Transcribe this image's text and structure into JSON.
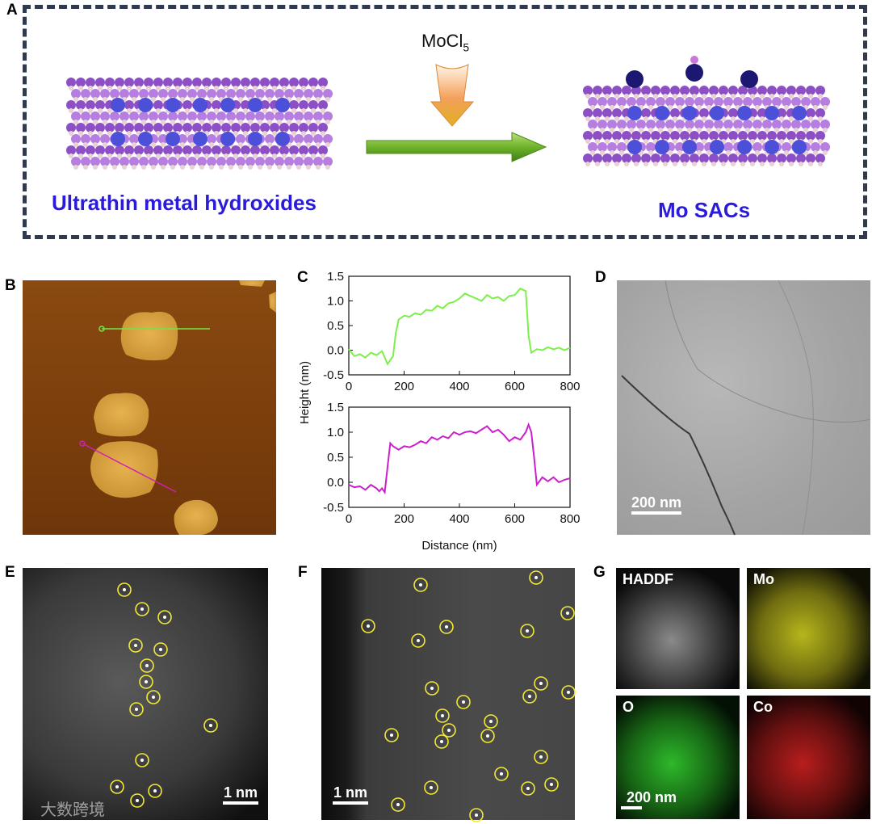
{
  "panel_letters": {
    "a": "A",
    "b": "B",
    "c": "C",
    "d": "D",
    "e": "E",
    "f": "F",
    "g": "G"
  },
  "panel_a": {
    "reagent": "MoCl",
    "reagent_sub": "5",
    "left_label": "Ultrathin metal hydroxides",
    "right_label": "Mo SACs",
    "colors": {
      "host_atom": "#b57ee0",
      "host_atom_dark": "#8d4fc6",
      "metal_center": "#4c4fd8",
      "mo_atom": "#1c1872",
      "h_atom": "#e8d2d2",
      "arrow": "#6fb22a"
    }
  },
  "panel_b": {
    "image": "afm-height-map"
  },
  "chart_data": {
    "type": "line",
    "xlabel": "Distance (nm)",
    "ylabel": "Height (nm)",
    "xlim": [
      0,
      800
    ],
    "ylim": [
      -0.5,
      1.5
    ],
    "xticks": [
      "0",
      "200",
      "400",
      "600",
      "800"
    ],
    "yticks": [
      "-0.5",
      "0.0",
      "0.5",
      "1.0",
      "1.5"
    ],
    "series": [
      {
        "color": "#7cf04a",
        "x": [
          0,
          20,
          40,
          60,
          80,
          100,
          120,
          140,
          160,
          170,
          180,
          200,
          220,
          240,
          260,
          280,
          300,
          320,
          340,
          360,
          380,
          400,
          420,
          440,
          460,
          480,
          500,
          520,
          540,
          560,
          580,
          600,
          620,
          640,
          650,
          660,
          680,
          700,
          720,
          740,
          760,
          780,
          800
        ],
        "y": [
          0.02,
          -0.12,
          -0.08,
          -0.15,
          -0.05,
          -0.1,
          -0.02,
          -0.28,
          -0.12,
          0.35,
          0.62,
          0.7,
          0.68,
          0.75,
          0.72,
          0.82,
          0.8,
          0.9,
          0.85,
          0.95,
          0.98,
          1.05,
          1.15,
          1.1,
          1.05,
          1.0,
          1.12,
          1.05,
          1.08,
          1.0,
          1.1,
          1.12,
          1.25,
          1.2,
          0.3,
          -0.05,
          0.02,
          0.0,
          0.06,
          0.02,
          0.05,
          0.0,
          0.05
        ]
      },
      {
        "color": "#cc1fcc",
        "x": [
          0,
          20,
          40,
          60,
          80,
          100,
          110,
          120,
          130,
          140,
          150,
          160,
          180,
          200,
          220,
          240,
          260,
          280,
          300,
          320,
          340,
          360,
          380,
          400,
          420,
          440,
          460,
          480,
          500,
          520,
          540,
          560,
          580,
          600,
          620,
          640,
          650,
          660,
          670,
          680,
          700,
          720,
          740,
          760,
          780,
          800
        ],
        "y": [
          -0.05,
          -0.1,
          -0.08,
          -0.15,
          -0.05,
          -0.12,
          -0.18,
          -0.12,
          -0.2,
          0.3,
          0.78,
          0.72,
          0.65,
          0.72,
          0.7,
          0.75,
          0.82,
          0.78,
          0.9,
          0.85,
          0.92,
          0.88,
          1.0,
          0.95,
          1.0,
          1.02,
          0.98,
          1.05,
          1.12,
          1.0,
          1.05,
          0.95,
          0.82,
          0.9,
          0.85,
          1.0,
          1.15,
          1.0,
          0.5,
          -0.05,
          0.1,
          0.02,
          0.1,
          0.0,
          0.05,
          0.08
        ]
      }
    ]
  },
  "panel_d": {
    "scale": "200 nm"
  },
  "panel_e": {
    "scale": "1 nm"
  },
  "panel_f": {
    "scale": "1 nm"
  },
  "panel_g": {
    "haddf": "HADDF",
    "mo": "Mo",
    "o": "O",
    "co": "Co",
    "scale": "200 nm",
    "colors": {
      "mo": "#d9d81f",
      "o": "#2fd22a",
      "co": "#d21e1e"
    }
  },
  "watermark": "大数跨境"
}
